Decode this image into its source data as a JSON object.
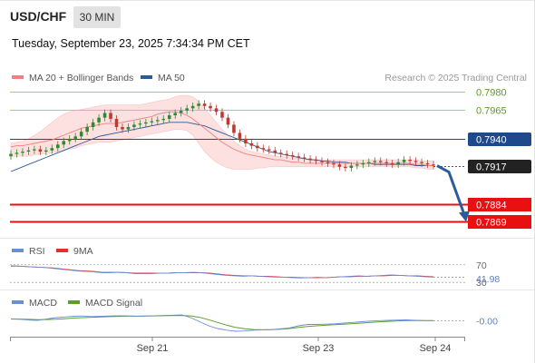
{
  "header": {
    "symbol": "USD/CHF",
    "timeframe": "30 MIN",
    "datetime": "Tuesday, September 23, 2025 7:34:34 PM CET"
  },
  "legend": {
    "ma20": "MA 20 + Bollinger Bands",
    "ma50": "MA 50",
    "credit": "Research © 2025 Trading Central",
    "rsi": "RSI",
    "rsi_ma": "9MA",
    "macd": "MACD",
    "macd_signal": "MACD Signal"
  },
  "colors": {
    "ma20": "#f08080",
    "ma50": "#2c5b9a",
    "bollinger_fill": "#fde0e0",
    "support": "#e81010",
    "resistance": "#a8d078",
    "pivot": "#1e4a8c",
    "current": "#222222",
    "arrow": "#2c5b9a",
    "candle_up": "#2f8a2f",
    "candle_down": "#c0392b",
    "rsi": "#6b8fd6",
    "rsi_ma": "#e03030",
    "macd": "#6b8fd6",
    "macd_signal": "#5aa02c"
  },
  "chart_data": [
    {
      "type": "candlestick",
      "x_axis": {
        "ticks": [
          "Sep 21",
          "Sep 23",
          "Sep 24"
        ]
      },
      "y_axis": {
        "ylim": [
          0.786,
          0.7988
        ]
      },
      "levels": [
        {
          "value": 0.798,
          "label": "0.7980",
          "kind": "resistance"
        },
        {
          "value": 0.7965,
          "label": "0.7965",
          "kind": "resistance"
        },
        {
          "value": 0.794,
          "label": "0.7940",
          "kind": "pivot"
        },
        {
          "value": 0.7917,
          "label": "0.7917",
          "kind": "current"
        },
        {
          "value": 0.7884,
          "label": "0.7884",
          "kind": "support"
        },
        {
          "value": 0.7869,
          "label": "0.7869",
          "kind": "support"
        }
      ],
      "close": [
        0.7927,
        0.7928,
        0.7929,
        0.793,
        0.7931,
        0.7929,
        0.793,
        0.7932,
        0.7935,
        0.7938,
        0.794,
        0.7942,
        0.7946,
        0.795,
        0.7954,
        0.7958,
        0.7962,
        0.7957,
        0.795,
        0.7948,
        0.795,
        0.7952,
        0.7953,
        0.7954,
        0.7955,
        0.7956,
        0.7957,
        0.796,
        0.7962,
        0.7964,
        0.7966,
        0.7968,
        0.797,
        0.7968,
        0.7966,
        0.7963,
        0.7958,
        0.7952,
        0.7945,
        0.794,
        0.7936,
        0.7934,
        0.7932,
        0.7931,
        0.793,
        0.7928,
        0.7927,
        0.7926,
        0.7925,
        0.7924,
        0.7923,
        0.7922,
        0.7921,
        0.792,
        0.7919,
        0.7918,
        0.7916,
        0.7915,
        0.7917,
        0.7918,
        0.7919,
        0.792,
        0.7921,
        0.792,
        0.7919,
        0.7918,
        0.792,
        0.7922,
        0.7921,
        0.792,
        0.7919,
        0.7918,
        0.7917
      ],
      "ma20": [
        0.7933,
        0.7934,
        0.7934,
        0.7935,
        0.7936,
        0.7937,
        0.7938,
        0.7939,
        0.7941,
        0.7943,
        0.7945,
        0.7947,
        0.7949,
        0.795,
        0.7951,
        0.7952,
        0.7953,
        0.7953,
        0.7953,
        0.7954,
        0.7955,
        0.7956,
        0.7957,
        0.7958,
        0.7959,
        0.7961,
        0.7962,
        0.7963,
        0.7963,
        0.7962,
        0.796,
        0.7957,
        0.7953,
        0.7949,
        0.7945,
        0.7941,
        0.7937,
        0.7934,
        0.7931,
        0.7929,
        0.7927,
        0.7926,
        0.7925,
        0.7924,
        0.7923,
        0.7922,
        0.7922,
        0.7921,
        0.792,
        0.792,
        0.7919,
        0.7919,
        0.7919,
        0.7919,
        0.7919,
        0.7919,
        0.7919,
        0.7919,
        0.7919,
        0.7919,
        0.7919,
        0.7919,
        0.7919,
        0.7919,
        0.7919,
        0.7919,
        0.7919,
        0.7919,
        0.7919,
        0.7918,
        0.7918,
        0.7917,
        0.7917
      ],
      "ma50": [
        0.7912,
        0.7914,
        0.7916,
        0.7918,
        0.792,
        0.7922,
        0.7924,
        0.7926,
        0.7928,
        0.793,
        0.7932,
        0.7934,
        0.7936,
        0.7938,
        0.794,
        0.7942,
        0.7943,
        0.7944,
        0.7945,
        0.7946,
        0.7947,
        0.7948,
        0.7949,
        0.795,
        0.7951,
        0.7952,
        0.7953,
        0.7954,
        0.7954,
        0.7954,
        0.7954,
        0.7953,
        0.7952,
        0.7951,
        0.7949,
        0.7947,
        0.7945,
        0.7943,
        0.7941,
        0.7939,
        0.7937,
        0.7935,
        0.7933,
        0.7931,
        0.7929,
        0.7928,
        0.7927,
        0.7926,
        0.7925,
        0.7924,
        0.7923,
        0.7922,
        0.7922,
        0.7921,
        0.7921,
        0.792,
        0.792,
        0.792,
        0.7919,
        0.7919,
        0.7919,
        0.7919,
        0.7918,
        0.7918,
        0.7918,
        0.7918,
        0.7918,
        0.7918,
        0.7918,
        0.7917,
        0.7917,
        0.7917,
        0.7917
      ],
      "bb_upper": [
        0.7936,
        0.7937,
        0.7938,
        0.794,
        0.7943,
        0.7946,
        0.795,
        0.7954,
        0.7958,
        0.7961,
        0.7963,
        0.7964,
        0.7965,
        0.7966,
        0.7967,
        0.7968,
        0.7969,
        0.7969,
        0.7969,
        0.7969,
        0.7969,
        0.7969,
        0.7969,
        0.797,
        0.7971,
        0.7972,
        0.7973,
        0.7974,
        0.7976,
        0.7977,
        0.7977,
        0.7976,
        0.7972,
        0.7966,
        0.796,
        0.7954,
        0.7948,
        0.7943,
        0.7938,
        0.7934,
        0.7931,
        0.7929,
        0.7928,
        0.7927,
        0.7926,
        0.7925,
        0.7925,
        0.7924,
        0.7924,
        0.7923,
        0.7923,
        0.7923,
        0.7922,
        0.7922,
        0.7922,
        0.7922,
        0.7922,
        0.7922,
        0.7922,
        0.7922,
        0.7922,
        0.7922,
        0.7922,
        0.7922,
        0.7922,
        0.7922,
        0.7922,
        0.7922,
        0.7922,
        0.7922,
        0.7921,
        0.7921,
        0.7921
      ],
      "bb_lower": [
        0.7925,
        0.7925,
        0.7925,
        0.7925,
        0.7926,
        0.7927,
        0.7927,
        0.7928,
        0.7929,
        0.793,
        0.7931,
        0.7932,
        0.7934,
        0.7935,
        0.7936,
        0.7937,
        0.7937,
        0.7937,
        0.7938,
        0.7939,
        0.794,
        0.7941,
        0.7942,
        0.7943,
        0.7944,
        0.7945,
        0.7946,
        0.7947,
        0.7948,
        0.7948,
        0.7947,
        0.7943,
        0.7936,
        0.7929,
        0.7924,
        0.792,
        0.7917,
        0.7915,
        0.7914,
        0.7914,
        0.7914,
        0.7914,
        0.7915,
        0.7915,
        0.7916,
        0.7916,
        0.7916,
        0.7916,
        0.7916,
        0.7916,
        0.7916,
        0.7916,
        0.7916,
        0.7916,
        0.7916,
        0.7916,
        0.7916,
        0.7916,
        0.7916,
        0.7916,
        0.7916,
        0.7916,
        0.7916,
        0.7916,
        0.7916,
        0.7916,
        0.7916,
        0.7916,
        0.7916,
        0.7915,
        0.7915,
        0.7914,
        0.7914
      ],
      "forecast": [
        0.7917,
        0.7869
      ]
    },
    {
      "type": "line",
      "name": "RSI",
      "levels": [
        {
          "value": 70,
          "label": "70"
        },
        {
          "value": 30,
          "label": "30"
        }
      ],
      "last_value": "41.98",
      "ylim": [
        20,
        80
      ],
      "rsi": [
        68,
        67,
        66,
        65,
        64,
        62,
        60,
        58,
        56,
        55,
        54,
        52,
        52,
        53,
        52,
        50,
        50,
        50,
        51,
        51,
        52,
        52,
        53,
        52,
        50,
        48,
        46,
        45,
        44,
        45,
        44,
        43,
        42,
        42,
        41,
        40,
        41,
        42,
        41,
        42,
        43,
        44,
        45,
        44,
        45,
        46,
        47,
        46,
        45,
        44,
        43,
        42
      ],
      "rsi_ma": [
        67,
        67,
        66,
        65,
        64,
        63,
        61,
        59,
        57,
        56,
        55,
        53,
        53,
        53,
        52,
        51,
        51,
        51,
        51,
        51,
        52,
        52,
        52,
        52,
        51,
        49,
        47,
        46,
        45,
        45,
        44,
        44,
        43,
        42,
        42,
        41,
        41,
        41,
        41,
        42,
        43,
        43,
        44,
        44,
        45,
        45,
        46,
        46,
        45,
        45,
        44,
        43
      ]
    },
    {
      "type": "line",
      "name": "MACD",
      "last_value": "-0.00",
      "ylim": [
        -1.0,
        0.6
      ],
      "macd": [
        0.1,
        0.08,
        0.02,
        0.0,
        0.1,
        0.2,
        0.25,
        0.3,
        0.32,
        0.28,
        0.3,
        0.32,
        0.34,
        0.33,
        0.3,
        0.32,
        0.34,
        0.36,
        0.38,
        0.4,
        0.2,
        -0.1,
        -0.4,
        -0.6,
        -0.72,
        -0.8,
        -0.78,
        -0.72,
        -0.7,
        -0.68,
        -0.62,
        -0.55,
        -0.4,
        -0.3,
        -0.3,
        -0.28,
        -0.25,
        -0.2,
        -0.15,
        -0.1,
        -0.05,
        -0.02,
        0.0,
        0.02,
        0.04,
        0.0,
        -0.02,
        -0.03
      ],
      "macd_signal": [
        0.1,
        0.09,
        0.07,
        0.05,
        0.06,
        0.08,
        0.12,
        0.17,
        0.2,
        0.23,
        0.25,
        0.27,
        0.29,
        0.31,
        0.31,
        0.32,
        0.33,
        0.34,
        0.35,
        0.36,
        0.33,
        0.22,
        0.05,
        -0.15,
        -0.35,
        -0.52,
        -0.62,
        -0.67,
        -0.69,
        -0.68,
        -0.65,
        -0.6,
        -0.52,
        -0.45,
        -0.4,
        -0.36,
        -0.32,
        -0.28,
        -0.24,
        -0.2,
        -0.15,
        -0.11,
        -0.07,
        -0.04,
        -0.02,
        -0.01,
        -0.02,
        -0.02
      ]
    }
  ]
}
